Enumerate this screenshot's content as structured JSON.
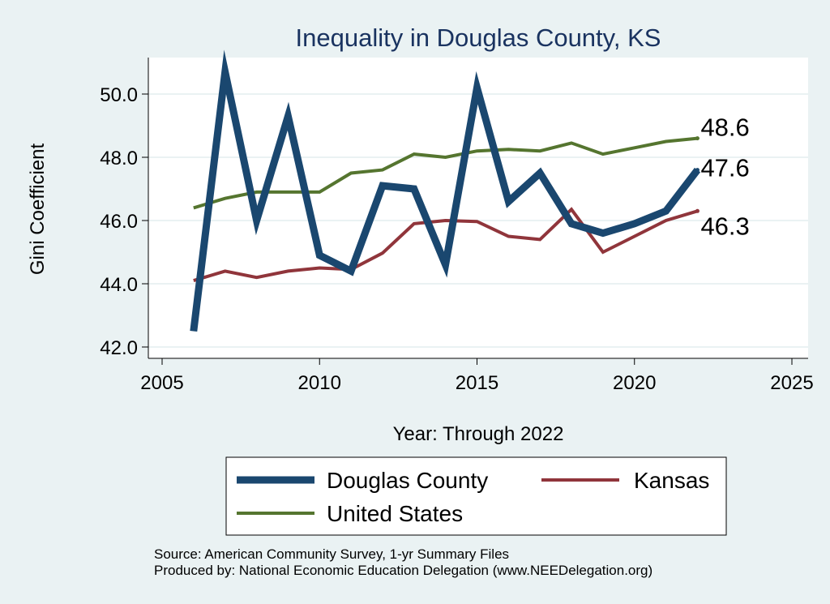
{
  "chart_data": {
    "type": "line",
    "title": "Inequality in Douglas County, KS",
    "xlabel": "Year: Through 2022",
    "ylabel": "Gini Coefficient",
    "xlim": [
      2005,
      2025
    ],
    "ylim": [
      41.8,
      51.1
    ],
    "xticks": [
      2005,
      2010,
      2015,
      2020,
      2025
    ],
    "yticks": [
      42.0,
      44.0,
      46.0,
      48.0,
      50.0
    ],
    "ytick_labels": [
      "42.0",
      "44.0",
      "46.0",
      "48.0",
      "50.0"
    ],
    "grid": true,
    "x": [
      2006,
      2007,
      2008,
      2009,
      2010,
      2011,
      2012,
      2013,
      2014,
      2015,
      2016,
      2017,
      2018,
      2019,
      2020,
      2021,
      2022
    ],
    "series": [
      {
        "key": "douglas",
        "name": "Douglas County",
        "color": "#1a476f",
        "values": [
          42.5,
          50.7,
          46.0,
          49.3,
          44.9,
          44.4,
          47.1,
          47.0,
          44.6,
          50.2,
          46.6,
          47.5,
          45.9,
          45.6,
          45.9,
          46.3,
          47.6
        ],
        "end_label": "47.6"
      },
      {
        "key": "kansas",
        "name": "Kansas",
        "color": "#90353b",
        "values": [
          44.1,
          44.4,
          44.2,
          44.4,
          44.5,
          44.45,
          44.97,
          45.9,
          46.0,
          45.97,
          45.5,
          45.4,
          46.35,
          45.0,
          45.5,
          46.0,
          46.3
        ],
        "end_label": "46.3"
      },
      {
        "key": "us",
        "name": "United States",
        "color": "#55752f",
        "values": [
          46.4,
          46.7,
          46.9,
          46.9,
          46.9,
          47.5,
          47.6,
          48.1,
          48.0,
          48.2,
          48.25,
          48.2,
          48.45,
          48.1,
          48.3,
          48.5,
          48.6
        ],
        "end_label": "48.6"
      }
    ],
    "legend": [
      "Douglas County",
      "Kansas",
      "United States"
    ],
    "legend_position": "bottom"
  },
  "source_line1": "Source: American Community Survey, 1-yr Summary Files",
  "source_line2": "Produced by: National Economic Education Delegation (www.NEEDelegation.org)"
}
